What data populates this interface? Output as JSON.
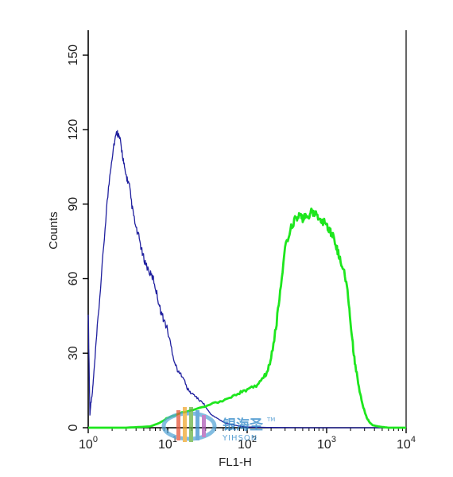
{
  "chart_data": {
    "type": "line",
    "xlabel": "FL1-H",
    "ylabel": "Counts",
    "x_scale": "log",
    "xlim": [
      1,
      10000
    ],
    "ylim": [
      0,
      160
    ],
    "x_tick_labels": [
      {
        "base": "10",
        "exp": "0"
      },
      {
        "base": "10",
        "exp": "1"
      },
      {
        "base": "10",
        "exp": "2"
      },
      {
        "base": "10",
        "exp": "3"
      },
      {
        "base": "10",
        "exp": "4"
      }
    ],
    "x_tick_values": [
      1,
      10,
      100,
      1000,
      10000
    ],
    "y_ticks": [
      0,
      30,
      60,
      90,
      120,
      150
    ],
    "grid": false,
    "legend": "none",
    "series": [
      {
        "color": "#1f1f9e",
        "x": [
          1.0,
          1.05,
          1.08,
          1.12,
          1.18,
          1.3,
          1.5,
          1.7,
          1.9,
          2.1,
          2.3,
          2.4,
          2.5,
          2.7,
          2.9,
          3.1,
          3.3,
          3.6,
          4.0,
          4.4,
          4.8,
          5.3,
          6.0,
          6.6,
          7.3,
          8.0,
          8.8,
          9.8,
          11.0,
          12.3,
          13.8,
          15.5,
          17.4,
          19.5,
          22.0,
          25.0,
          28.0,
          32.0,
          36.0,
          41.0,
          46.0,
          52.0,
          60.0,
          70.0,
          85.0,
          100.0,
          200.0,
          500.0,
          1000.0,
          3000.0,
          10000.0
        ],
        "values": [
          47,
          5,
          10,
          13,
          22,
          40,
          65,
          88,
          104,
          114,
          119,
          118,
          116,
          110,
          103,
          100,
          97,
          88,
          80,
          76,
          70,
          66,
          62,
          60,
          54,
          48,
          44,
          40,
          33,
          26,
          22,
          21,
          16,
          14,
          13,
          11,
          10,
          7,
          5,
          4,
          3,
          2,
          1.5,
          1,
          0.5,
          0.3,
          0.1,
          0,
          0,
          0,
          0
        ]
      },
      {
        "color": "#1ee61e",
        "x": [
          1.0,
          3.0,
          6.0,
          8.0,
          10.0,
          15.0,
          25.0,
          40.0,
          60.0,
          80.0,
          100.0,
          130.0,
          160.0,
          180.0,
          200.0,
          230.0,
          260.0,
          300.0,
          350.0,
          400.0,
          450.0,
          500.0,
          550.0,
          600.0,
          650.0,
          700.0,
          800.0,
          900.0,
          1000.0,
          1100.0,
          1200.0,
          1350.0,
          1500.0,
          1700.0,
          1900.0,
          2100.0,
          2300.0,
          2600.0,
          2900.0,
          3200.0,
          3500.0,
          3800.0,
          4500.0,
          6000.0,
          10000.0
        ],
        "values": [
          0,
          0,
          0.5,
          2,
          4,
          6,
          8,
          10,
          12,
          14,
          15,
          17,
          20,
          23,
          28,
          40,
          55,
          72,
          80,
          84,
          85,
          84,
          86,
          85,
          87,
          86,
          85,
          83,
          82,
          79,
          77,
          72,
          67,
          62,
          50,
          35,
          25,
          15,
          8,
          4,
          2,
          1,
          0.5,
          0,
          0
        ]
      }
    ]
  },
  "watermark": {
    "brand": "银海圣",
    "tm": "TM",
    "sub": "YIHSON"
  }
}
